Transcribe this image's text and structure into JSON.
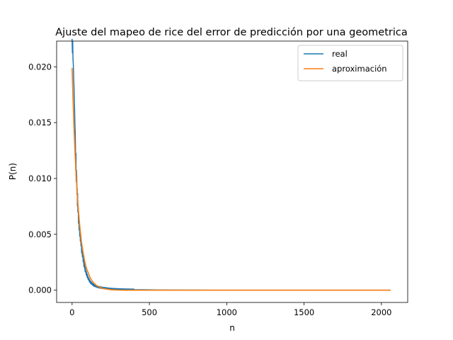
{
  "chart_data": {
    "type": "line",
    "title": "Ajuste del mapeo de rice del error de predicción por una geometrica",
    "xlabel": "n",
    "ylabel": "P(n)",
    "xlim": [
      -100,
      2170
    ],
    "ylim": [
      -0.0011,
      0.0223
    ],
    "xticks": [
      0,
      500,
      1000,
      1500,
      2000
    ],
    "xtick_labels": [
      "0",
      "500",
      "1000",
      "1500",
      "2000"
    ],
    "yticks": [
      0.0,
      0.005,
      0.01,
      0.015,
      0.02
    ],
    "ytick_labels": [
      "0.000",
      "0.005",
      "0.010",
      "0.015",
      "0.020"
    ],
    "grid": false,
    "legend_position": "top-right",
    "series": [
      {
        "name": "real",
        "color": "#1f77b4",
        "x": [
          0,
          2,
          4,
          6,
          8,
          10,
          12,
          14,
          16,
          18,
          20,
          22,
          25,
          28,
          30,
          33,
          36,
          40,
          44,
          48,
          52,
          56,
          60,
          65,
          70,
          75,
          80,
          90,
          100,
          110,
          120,
          130,
          140,
          150,
          170,
          190,
          210,
          240,
          270,
          300,
          350,
          400,
          450,
          500,
          550,
          600,
          700,
          800,
          900,
          1000,
          1200,
          1400,
          1600,
          1800,
          2000,
          2060
        ],
        "y": [
          0.0217,
          0.0202,
          0.0209,
          0.0192,
          0.0186,
          0.0175,
          0.0168,
          0.0158,
          0.015,
          0.0139,
          0.0133,
          0.0121,
          0.0112,
          0.0101,
          0.0094,
          0.0086,
          0.0079,
          0.0068,
          0.0062,
          0.0055,
          0.0049,
          0.0043,
          0.0039,
          0.0033,
          0.0029,
          0.0025,
          0.0021,
          0.0016,
          0.0012,
          0.0009,
          0.0007,
          0.00055,
          0.00045,
          0.00038,
          0.00028,
          0.00022,
          0.00018,
          0.00013,
          0.0001,
          8e-05,
          6e-05,
          5e-05,
          4e-05,
          3e-05,
          2e-05,
          2e-05,
          1e-05,
          1e-05,
          5e-06,
          5e-06,
          0.0,
          0.0,
          0.0,
          0.0,
          0.0,
          0.0
        ]
      },
      {
        "name": "aproximación",
        "color": "#ff7f0e",
        "x": [
          0,
          5,
          10,
          15,
          20,
          25,
          30,
          40,
          50,
          60,
          70,
          80,
          90,
          100,
          120,
          140,
          160,
          180,
          200,
          250,
          300,
          350,
          400,
          500,
          600,
          800,
          1000,
          1500,
          2060
        ],
        "y": [
          0.0199,
          0.0175,
          0.0154,
          0.0136,
          0.012,
          0.0106,
          0.0093,
          0.0073,
          0.0057,
          0.0044,
          0.0035,
          0.0027,
          0.0021,
          0.0017,
          0.00103,
          0.00064,
          0.0004,
          0.00025,
          0.00015,
          4e-05,
          1e-05,
          0.0,
          0.0,
          0.0,
          0.0,
          0.0,
          0.0,
          0.0,
          0.0
        ]
      }
    ]
  }
}
